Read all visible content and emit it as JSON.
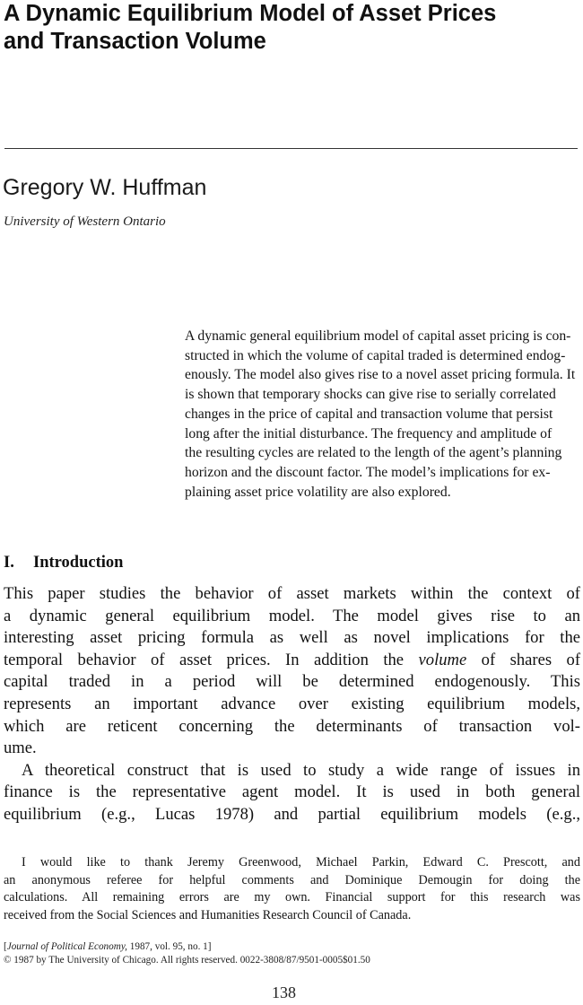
{
  "article": {
    "title_lines": [
      "A Dynamic Equilibrium Model of Asset Prices",
      "and Transaction Volume"
    ],
    "author": "Gregory W. Huffman",
    "affiliation": "University of Western Ontario"
  },
  "abstract": {
    "lines": [
      "A dynamic general equilibrium model of capital asset pricing is con-",
      "structed in which the volume of capital traded is determined endog-",
      "enously. The model also gives rise to a novel asset pricing formula. It",
      "is shown that temporary shocks can give rise to serially correlated",
      "changes in the price of capital and transaction volume that persist",
      "long after the initial disturbance. The frequency and amplitude of",
      "the resulting cycles are related to the length of the agent’s planning",
      "horizon and the discount factor. The model’s implications for ex-",
      "plaining asset price volatility are also explored."
    ]
  },
  "section": {
    "number": "I.",
    "title": "Introduction"
  },
  "body": {
    "p1_lines": [
      "This paper studies the behavior of asset markets within the context of",
      "a dynamic general equilibrium model. The model gives rise to an",
      "interesting asset pricing formula as well as novel implications for the",
      "temporal behavior of asset prices. In addition the",
      "capital traded in a period will be determined endogenously. This",
      "represents an important advance over existing equilibrium models,",
      "which are reticent concerning the determinants of transaction vol-",
      "ume."
    ],
    "p1_line4_italic": "volume",
    "p1_line4_tail": " of shares of",
    "p2_lines": [
      "A theoretical construct that is used to study a wide range of issues in",
      "finance is the representative agent model. It is used in both general",
      "equilibrium (e.g., Lucas 1978) and partial equilibrium models (e.g.,"
    ]
  },
  "footnote": {
    "lines": [
      "I would like to thank Jeremy Greenwood, Michael Parkin, Edward C. Prescott, and",
      "an anonymous referee for helpful comments and Dominique Demougin for doing the",
      "calculations. All remaining errors are my own. Financial support for this research was",
      "received from the Social Sciences and Humanities Research Council of Canada."
    ]
  },
  "publication": {
    "journal_open": "[",
    "journal_name": "Journal of Political Economy,",
    "journal_rest": " 1987, vol. 95, no. 1]",
    "copyright": "© 1987 by The University of Chicago. All rights reserved. 0022-3808/87/9501-0005$01.50"
  },
  "page_number": "138"
}
